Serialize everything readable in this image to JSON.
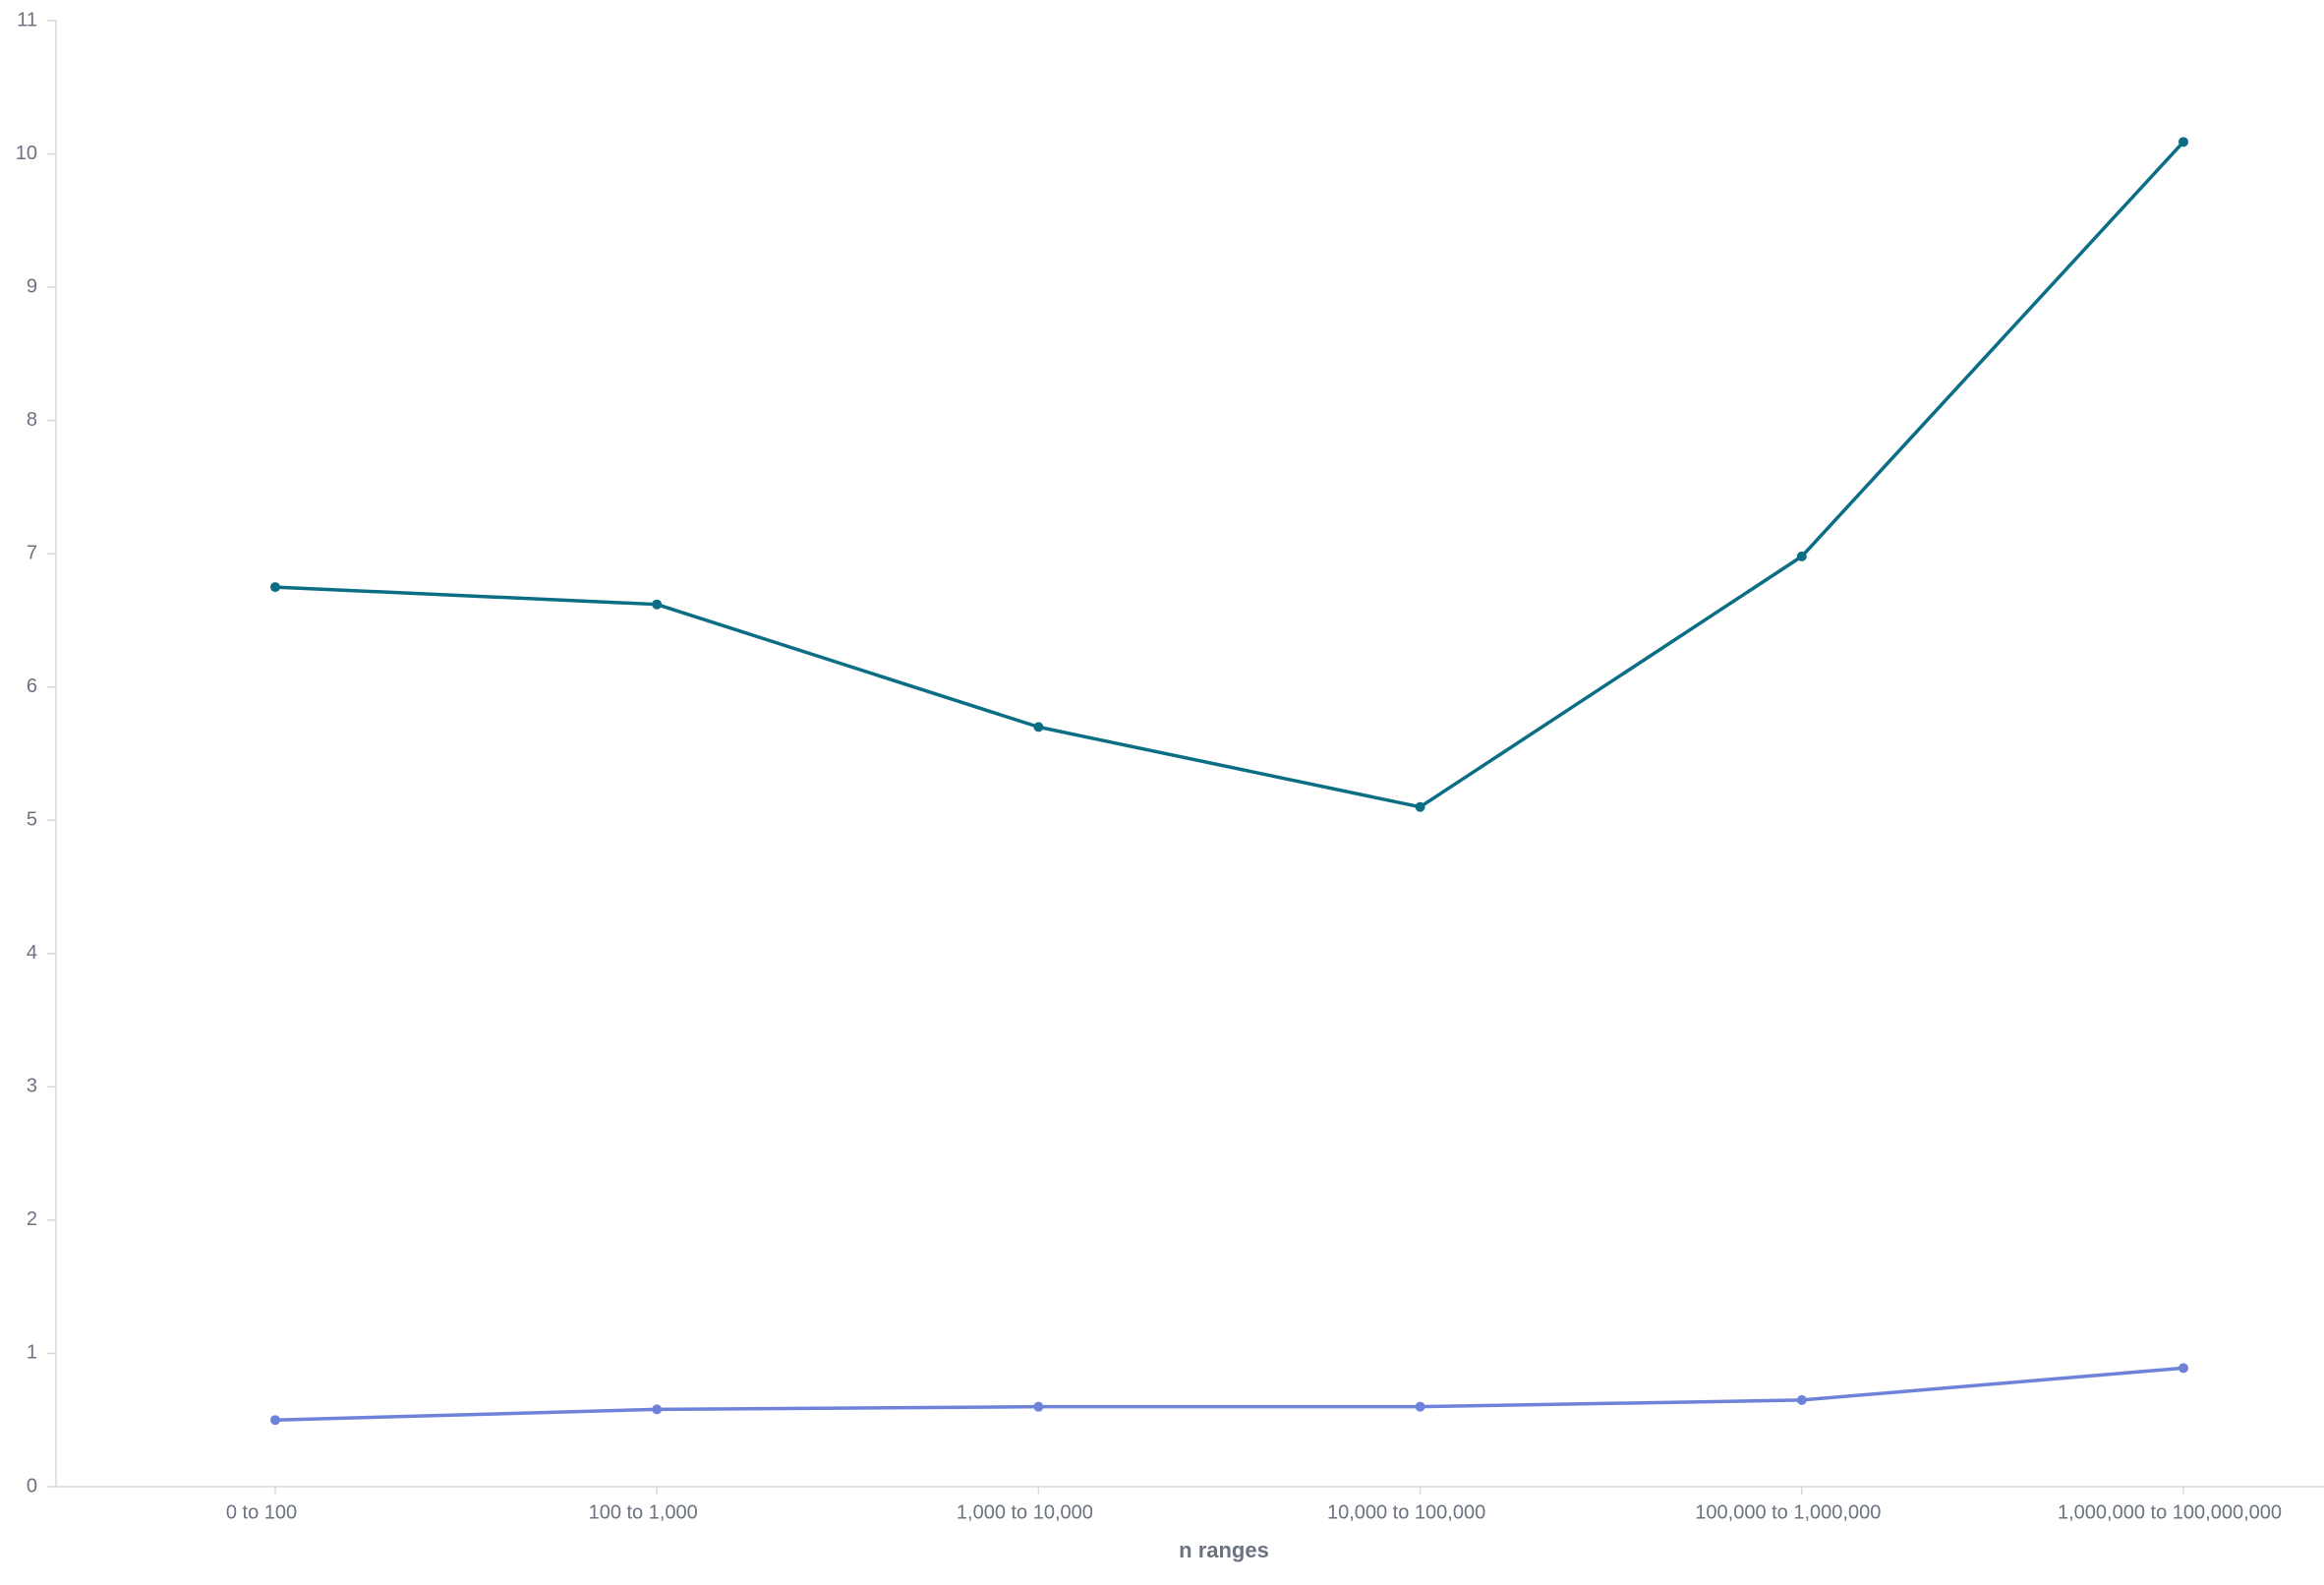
{
  "chart_data": {
    "type": "line",
    "x_label": "n ranges",
    "categories": [
      "0 to 100",
      "100 to 1,000",
      "1,000 to 10,000",
      "10,000 to 100,000",
      "100,000 to 1,000,000",
      "1,000,000 to 100,000,000"
    ],
    "series": [
      {
        "color": "#0b6e84",
        "values": [
          6.75,
          6.62,
          5.7,
          5.1,
          6.98,
          10.09
        ]
      },
      {
        "color": "#6f82d9",
        "values": [
          0.5,
          0.58,
          0.6,
          0.6,
          0.65,
          0.89
        ]
      }
    ],
    "ylim": [
      0,
      11
    ],
    "yticks": [
      0,
      1,
      2,
      3,
      4,
      5,
      6,
      7,
      8,
      9,
      10,
      11
    ],
    "grid": false
  }
}
